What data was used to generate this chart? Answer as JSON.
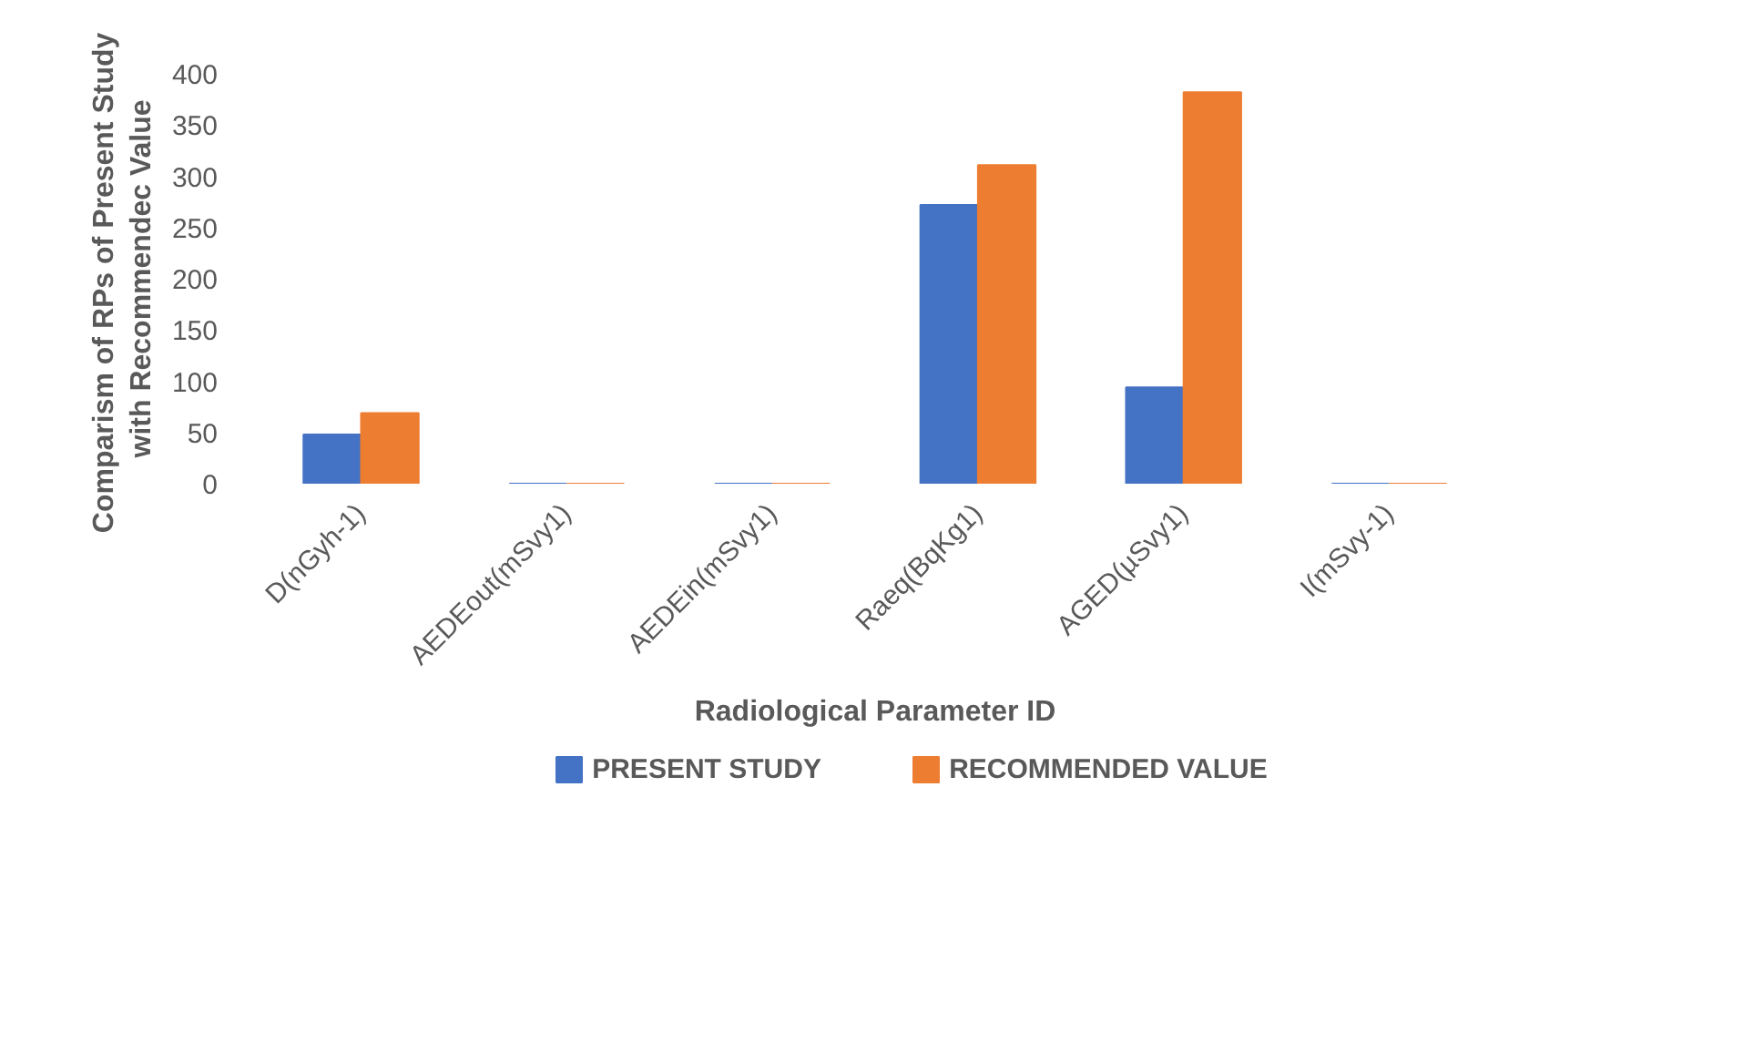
{
  "chart_data": {
    "type": "bar",
    "xlabel": "Radiological Parameter ID",
    "ylabel": "Comparism of RPs of  Present Study\nwith Recommendec Value",
    "categories": [
      "D(nGyh-1)",
      "AEDEout(mSvy1)",
      "AEDEin(mSvy1)",
      "Raeq(BqKg1)",
      "AGED(µSvy1)",
      "I(mSvy-1)"
    ],
    "series": [
      {
        "name": "PRESENT STUDY",
        "color": "#4472c4",
        "values": [
          48,
          0,
          0,
          272,
          94,
          0
        ]
      },
      {
        "name": "RECOMMENDED VALUE",
        "color": "#ed7d31",
        "values": [
          69,
          0,
          0,
          311,
          382,
          0
        ]
      }
    ],
    "ylim": [
      0,
      400
    ],
    "yticks": [
      0,
      50,
      100,
      150,
      200,
      250,
      300,
      350,
      400
    ],
    "grid": false,
    "legend": "bottom"
  }
}
